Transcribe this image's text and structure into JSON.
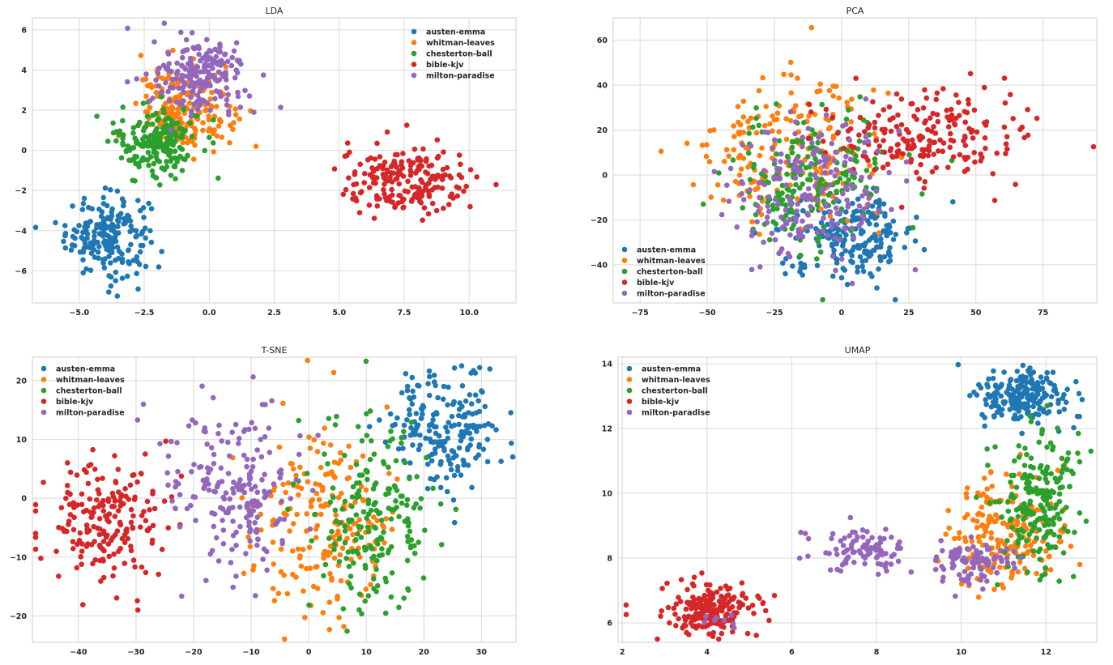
{
  "palette": [
    "#1f77b4",
    "#ff7f0e",
    "#2ca02c",
    "#d62728",
    "#9467bd"
  ],
  "chart_data": [
    {
      "type": "scatter",
      "title": "LDA",
      "xlim": [
        -6.8,
        11.8
      ],
      "ylim": [
        -7.6,
        6.6
      ],
      "xticks": [
        -5.0,
        -2.5,
        0.0,
        2.5,
        5.0,
        7.5,
        10.0
      ],
      "xtick_labels": [
        "−5.0",
        "−2.5",
        "0.0",
        "2.5",
        "5.0",
        "7.5",
        "10.0"
      ],
      "yticks": [
        -6,
        -4,
        -2,
        0,
        2,
        4,
        6
      ],
      "ytick_labels": [
        "−6",
        "−4",
        "−2",
        "0",
        "2",
        "4",
        "6"
      ],
      "grid": true,
      "legend_position": "top-right",
      "series": [
        {
          "name": "austen-emma",
          "clusters": [
            {
              "cx": -3.9,
              "cy": -4.2,
              "sx": 0.8,
              "sy": 1.0,
              "n": 200
            }
          ]
        },
        {
          "name": "whitman-leaves",
          "clusters": [
            {
              "cx": -0.9,
              "cy": 2.0,
              "sx": 0.9,
              "sy": 1.0,
              "n": 200
            }
          ]
        },
        {
          "name": "chesterton-ball",
          "clusters": [
            {
              "cx": -2.0,
              "cy": 0.5,
              "sx": 0.8,
              "sy": 0.9,
              "n": 200
            }
          ]
        },
        {
          "name": "bible-kjv",
          "clusters": [
            {
              "cx": 7.6,
              "cy": -1.6,
              "sx": 1.3,
              "sy": 0.9,
              "n": 200
            }
          ]
        },
        {
          "name": "milton-paradise",
          "clusters": [
            {
              "cx": -0.3,
              "cy": 3.7,
              "sx": 0.9,
              "sy": 0.9,
              "n": 200
            }
          ]
        }
      ]
    },
    {
      "type": "scatter",
      "title": "PCA",
      "xlim": [
        -85,
        95
      ],
      "ylim": [
        -57,
        70
      ],
      "xticks": [
        -75,
        -50,
        -25,
        0,
        25,
        50,
        75
      ],
      "xtick_labels": [
        "−75",
        "−50",
        "−25",
        "0",
        "25",
        "50",
        "75"
      ],
      "yticks": [
        -40,
        -20,
        0,
        20,
        40,
        60
      ],
      "ytick_labels": [
        "−40",
        "−20",
        "0",
        "20",
        "40",
        "60"
      ],
      "grid": true,
      "legend_position": "bottom-left",
      "series": [
        {
          "name": "austen-emma",
          "clusters": [
            {
              "cx": 5,
              "cy": -27,
              "sx": 12,
              "sy": 9,
              "n": 200
            }
          ]
        },
        {
          "name": "whitman-leaves",
          "clusters": [
            {
              "cx": -22,
              "cy": 10,
              "sx": 18,
              "sy": 17,
              "n": 200
            }
          ]
        },
        {
          "name": "chesterton-ball",
          "clusters": [
            {
              "cx": -12,
              "cy": -3,
              "sx": 14,
              "sy": 15,
              "n": 200
            }
          ]
        },
        {
          "name": "bible-kjv",
          "clusters": [
            {
              "cx": 32,
              "cy": 18,
              "sx": 18,
              "sy": 10,
              "n": 200
            }
          ]
        },
        {
          "name": "milton-paradise",
          "clusters": [
            {
              "cx": -10,
              "cy": -6,
              "sx": 15,
              "sy": 15,
              "n": 200
            }
          ]
        }
      ]
    },
    {
      "type": "scatter",
      "title": "T-SNE",
      "xlim": [
        -48,
        36
      ],
      "ylim": [
        -24.5,
        24
      ],
      "xticks": [
        -40,
        -30,
        -20,
        -10,
        0,
        10,
        20,
        30
      ],
      "xtick_labels": [
        "−40",
        "−30",
        "−20",
        "−10",
        "0",
        "10",
        "20",
        "30"
      ],
      "yticks": [
        -20,
        -10,
        0,
        10,
        20
      ],
      "ytick_labels": [
        "−20",
        "−10",
        "0",
        "10",
        "20"
      ],
      "grid": true,
      "legend_position": "top-left",
      "series": [
        {
          "name": "austen-emma",
          "clusters": [
            {
              "cx": 24,
              "cy": 12,
              "sx": 5,
              "sy": 5,
              "n": 200
            }
          ]
        },
        {
          "name": "whitman-leaves",
          "clusters": [
            {
              "cx": 3,
              "cy": -4,
              "sx": 6,
              "sy": 8,
              "n": 200
            }
          ]
        },
        {
          "name": "chesterton-ball",
          "clusters": [
            {
              "cx": 11,
              "cy": -3,
              "sx": 5,
              "sy": 8,
              "n": 200
            }
          ]
        },
        {
          "name": "bible-kjv",
          "clusters": [
            {
              "cx": -36,
              "cy": -4,
              "sx": 5,
              "sy": 5,
              "n": 200
            }
          ]
        },
        {
          "name": "milton-paradise",
          "clusters": [
            {
              "cx": -13,
              "cy": 1,
              "sx": 6,
              "sy": 7,
              "n": 200
            }
          ]
        }
      ]
    },
    {
      "type": "scatter",
      "title": "UMAP",
      "xlim": [
        1.9,
        13.2
      ],
      "ylim": [
        5.4,
        14.2
      ],
      "xticks": [
        2,
        4,
        6,
        8,
        10,
        12
      ],
      "xtick_labels": [
        "2",
        "4",
        "6",
        "8",
        "10",
        "12"
      ],
      "yticks": [
        6,
        8,
        10,
        12,
        14
      ],
      "ytick_labels": [
        "6",
        "8",
        "10",
        "12",
        "14"
      ],
      "grid": true,
      "legend_position": "top-left",
      "series": [
        {
          "name": "austen-emma",
          "clusters": [
            {
              "cx": 11.5,
              "cy": 13.0,
              "sx": 0.55,
              "sy": 0.45,
              "n": 200
            }
          ]
        },
        {
          "name": "whitman-leaves",
          "clusters": [
            {
              "cx": 11.0,
              "cy": 8.8,
              "sx": 0.7,
              "sy": 0.9,
              "n": 200
            }
          ]
        },
        {
          "name": "chesterton-ball",
          "clusters": [
            {
              "cx": 11.8,
              "cy": 9.8,
              "sx": 0.5,
              "sy": 1.1,
              "n": 200
            }
          ]
        },
        {
          "name": "bible-kjv",
          "clusters": [
            {
              "cx": 4.0,
              "cy": 6.4,
              "sx": 0.6,
              "sy": 0.4,
              "n": 200
            }
          ]
        },
        {
          "name": "milton-paradise",
          "clusters": [
            {
              "cx": 7.6,
              "cy": 8.3,
              "sx": 0.6,
              "sy": 0.35,
              "n": 90
            },
            {
              "cx": 10.3,
              "cy": 7.9,
              "sx": 0.5,
              "sy": 0.35,
              "n": 90
            },
            {
              "cx": 4.5,
              "cy": 6.0,
              "sx": 0.2,
              "sy": 0.2,
              "n": 8
            }
          ]
        }
      ]
    }
  ]
}
